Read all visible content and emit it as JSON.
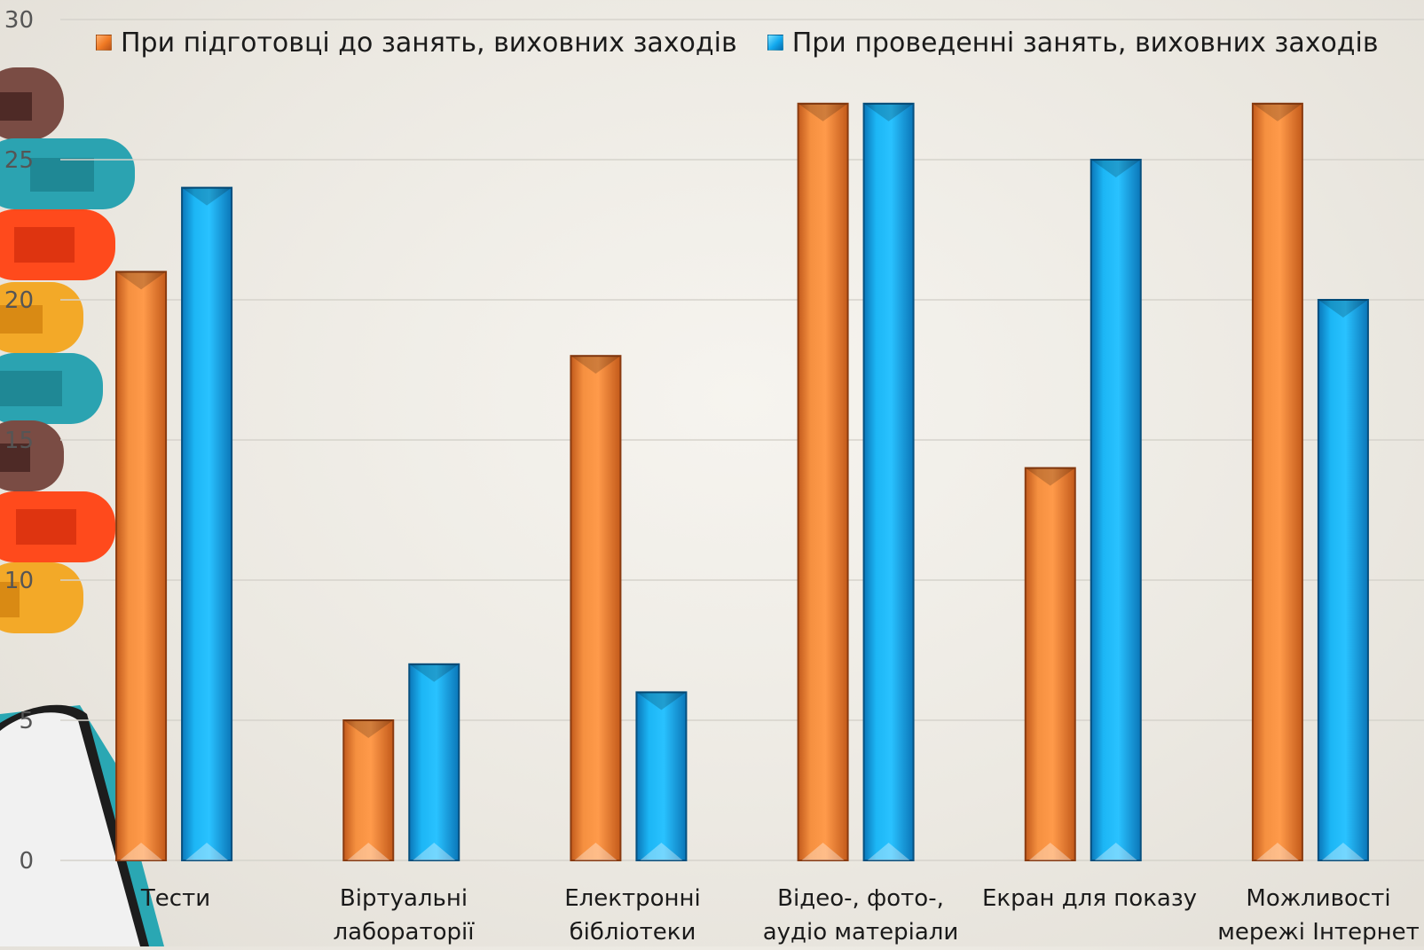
{
  "chart_data": {
    "type": "bar",
    "categories": [
      "Тести",
      "Віртуальні\nлабораторії",
      "Електронні\nбібліотеки",
      "Відео-, фото-,\nаудіо матеріали",
      "Екран для показу",
      "Можливості\nмережі  Інтернет"
    ],
    "series": [
      {
        "name": "При підготовці до занять, виховних заходів",
        "color": "#f07a24",
        "values": [
          21,
          5,
          18,
          27,
          14,
          27
        ]
      },
      {
        "name": "При проведенні занять, виховних заходів",
        "color": "#12a9ee",
        "values": [
          24,
          7,
          6,
          27,
          25,
          20
        ]
      }
    ],
    "ylim": [
      0,
      30
    ],
    "yticks": [
      "0",
      "5",
      "10",
      "15",
      "20",
      "25",
      "30"
    ],
    "legend_position": "top",
    "grid": true
  }
}
